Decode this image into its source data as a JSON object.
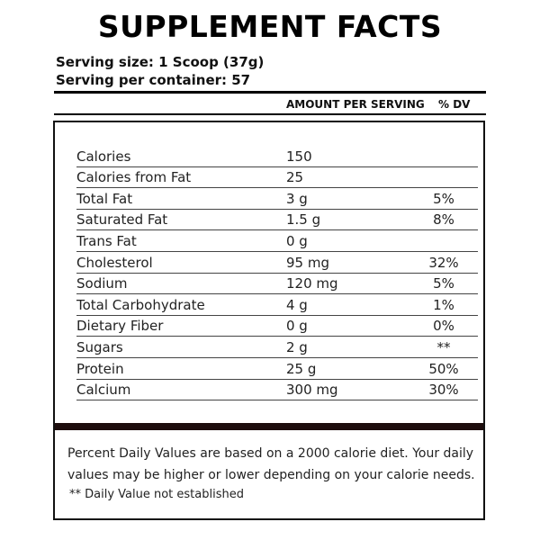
{
  "title": "SUPPLEMENT FACTS",
  "serving_size": "Serving size: 1 Scoop (37g)",
  "servings_per_container": "Serving per container: 57",
  "columns": {
    "amount": "AMOUNT PER SERVING",
    "dv": "% DV"
  },
  "rows": [
    {
      "name": "Calories",
      "amount": "150",
      "dv": ""
    },
    {
      "name": "Calories from Fat",
      "amount": "25",
      "dv": ""
    },
    {
      "name": "Total Fat",
      "amount": "3 g",
      "dv": "5%"
    },
    {
      "name": "Saturated Fat",
      "amount": "1.5 g",
      "dv": "8%"
    },
    {
      "name": "Trans Fat",
      "amount": "0 g",
      "dv": ""
    },
    {
      "name": "Cholesterol",
      "amount": "95 mg",
      "dv": "32%"
    },
    {
      "name": "Sodium",
      "amount": "120 mg",
      "dv": "5%"
    },
    {
      "name": "Total Carbohydrate",
      "amount": "4 g",
      "dv": "1%"
    },
    {
      "name": "Dietary Fiber",
      "amount": "0 g",
      "dv": "0%"
    },
    {
      "name": "Sugars",
      "amount": "2 g",
      "dv": "**"
    },
    {
      "name": "Protein",
      "amount": "25 g",
      "dv": "50%"
    },
    {
      "name": "Calcium",
      "amount": "300 mg",
      "dv": "30%"
    }
  ],
  "footnote": "Percent Daily Values are based on a 2000 calorie diet. Your daily values may be higher or lower depending on your calorie needs.",
  "footnote_dv": "** Daily Value not established"
}
